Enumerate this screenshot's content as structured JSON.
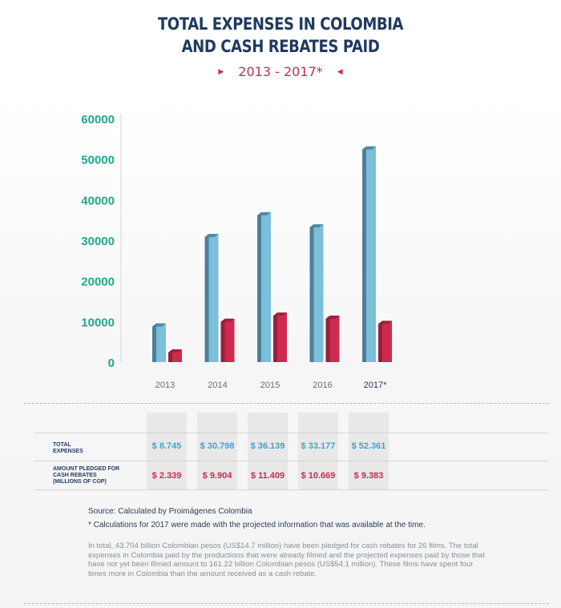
{
  "header": {
    "title_line1": "TOTAL EXPENSES IN COLOMBIA",
    "title_line2": "AND CASH REBATES PAID",
    "subtitle": "2013 - 2017*"
  },
  "chart_data": {
    "type": "bar",
    "categories": [
      "2013",
      "2014",
      "2015",
      "2016",
      "2017*"
    ],
    "series": [
      {
        "values": [
          8745,
          30798,
          36139,
          33177,
          52361
        ],
        "color": "#7bbfd8",
        "shade": "#4e7f9a"
      },
      {
        "values": [
          2339,
          9904,
          11409,
          10669,
          9383
        ],
        "color": "#d0294f",
        "shade": "#96203c"
      }
    ],
    "y_ticks": [
      "0",
      "10000",
      "20000",
      "30000",
      "40000",
      "50000",
      "60000"
    ],
    "ylim": [
      0,
      60000
    ],
    "grid": false,
    "colors": {
      "tick": "#22a68a",
      "category": "#6b6e74",
      "highlight_category": "#1f3a5f"
    }
  },
  "table": {
    "rows": [
      {
        "label": "TOTAL EXPENSES",
        "values": [
          "$ 8.745",
          "$ 30.798",
          "$ 36.139",
          "$ 33.177",
          "$ 52.361"
        ]
      },
      {
        "label": "AMOUNT PLEDGED FOR CASH REBATES (MILLIONS OF COP)",
        "values": [
          "$ 2.339",
          "$ 9.904",
          "$ 11.409",
          "$ 10.669",
          "$ 9.383"
        ]
      }
    ]
  },
  "footer": {
    "source_label": "Source:",
    "source_text": "Calculated by Proimágenes Colombia",
    "note": "* Calculations for 2017 were made with the projected information that was available at the time.",
    "paragraph": "In total, 43.704 billion Colombian pesos (US$14.7 million) have been pledged for cash rebates for 26 films. The total expenses in Colombia paid by the productions that were already filmed and the projected expenses paid by those that have not yet been filmed amount to 161.22 billion Colombian pesos (US$54.1 million). These films have spent four times more in Colombia than the amount received as a cash rebate."
  }
}
